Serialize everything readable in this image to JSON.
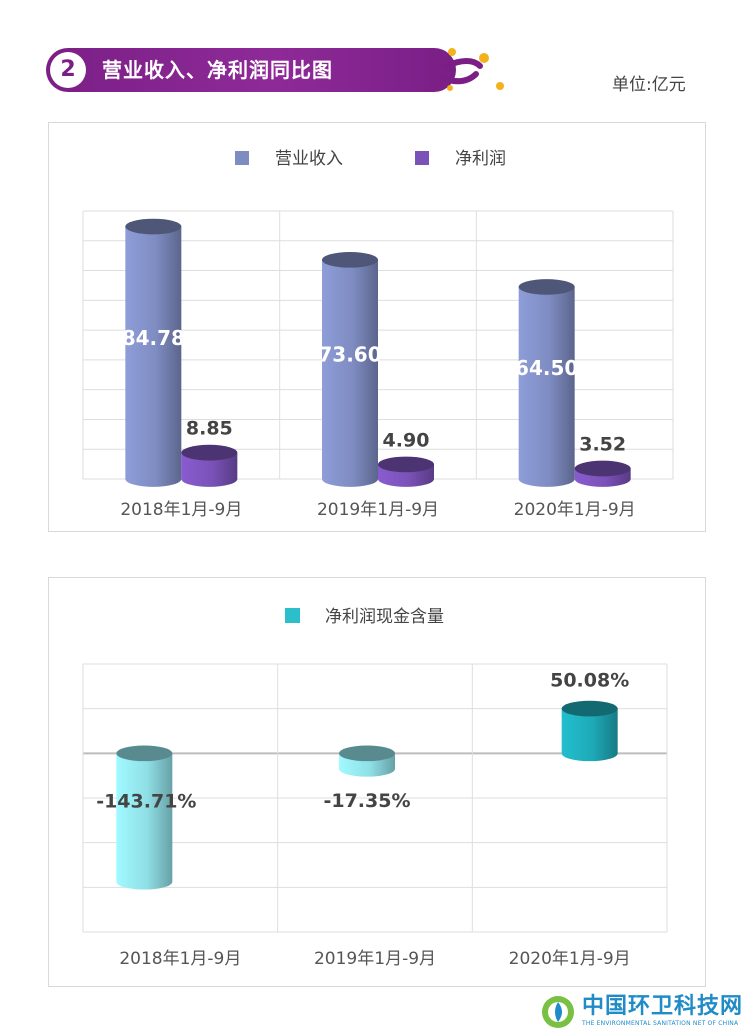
{
  "header": {
    "number": "2",
    "title": "营业收入、净利润同比图",
    "unit": "单位:亿元",
    "accent_color": "#7b1f86",
    "dot_color": "#f3b21b"
  },
  "chart_data": [
    {
      "type": "bar",
      "style": "3d-cylinder",
      "categories": [
        "2018年1月-9月",
        "2019年1月-9月",
        "2020年1月-9月"
      ],
      "series": [
        {
          "name": "营业收入",
          "values": [
            84.78,
            73.6,
            64.5
          ],
          "labels": [
            "84.78",
            "73.60",
            "64.50"
          ],
          "color": "#7f8cc2"
        },
        {
          "name": "净利润",
          "values": [
            8.85,
            4.9,
            3.52
          ],
          "labels": [
            "8.85",
            "4.90",
            "3.52"
          ],
          "color": "#7a52b8"
        }
      ],
      "ylim": [
        0,
        90
      ],
      "grid": true,
      "legend": "top-center"
    },
    {
      "type": "bar",
      "style": "3d-cylinder",
      "categories": [
        "2018年1月-9月",
        "2019年1月-9月",
        "2020年1月-9月"
      ],
      "series": [
        {
          "name": "净利润现金含量",
          "values": [
            -143.71,
            -17.35,
            50.08
          ],
          "labels": [
            "-143.71%",
            "-17.35%",
            "50.08%"
          ],
          "color": "#2bbfcb"
        }
      ],
      "ylim": [
        -200,
        100
      ],
      "grid": true,
      "legend": "top-center"
    }
  ],
  "watermark": {
    "text": "中国环卫科技网",
    "subtext": "THE ENVIRONMENTAL SANITATION NET OF CHINA"
  }
}
